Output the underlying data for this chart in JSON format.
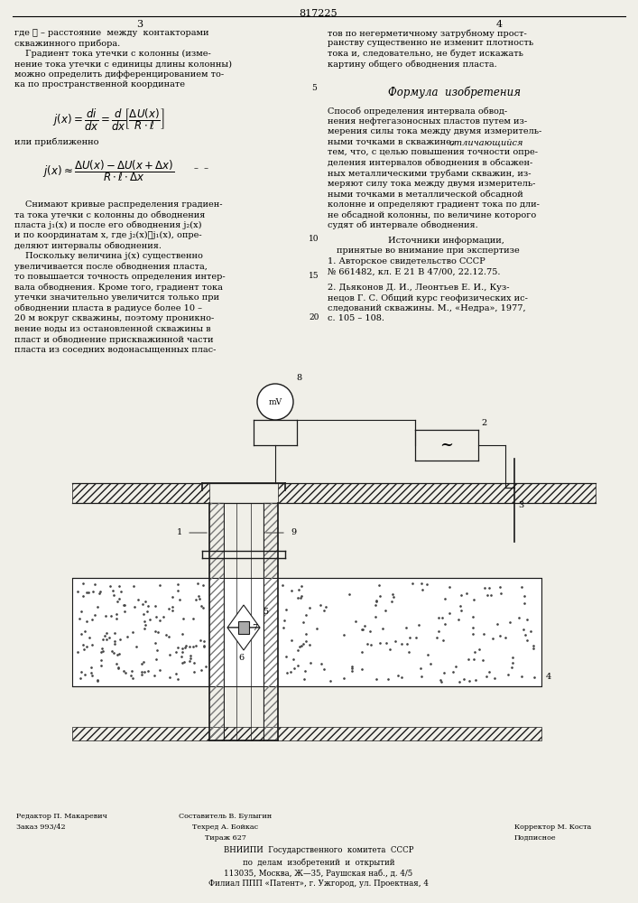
{
  "page_width": 7.07,
  "page_height": 10.0,
  "bg_color": "#f0efe8",
  "patent_number": "817225",
  "page_num_left": "3",
  "page_num_right": "4"
}
